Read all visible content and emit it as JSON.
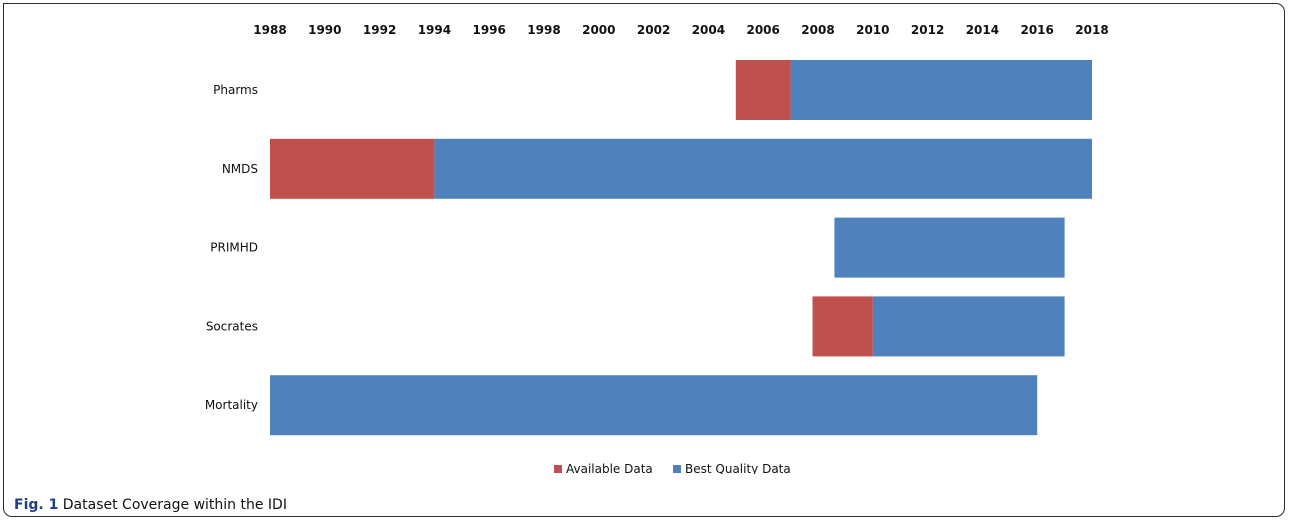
{
  "caption": {
    "label": "Fig. 1",
    "text": "Dataset Coverage within the IDI"
  },
  "chart_data": {
    "type": "bar",
    "orientation": "horizontal",
    "stacked": true,
    "title": "",
    "xlabel": "",
    "ylabel": "",
    "x_axis_position": "top",
    "xlim": [
      1988,
      2018
    ],
    "x_ticks": [
      "1988",
      "1990",
      "1992",
      "1994",
      "1996",
      "1998",
      "2000",
      "2002",
      "2004",
      "2006",
      "2008",
      "2010",
      "2012",
      "2014",
      "2016",
      "2018"
    ],
    "grid": false,
    "legend_position": "bottom-center",
    "categories": [
      "Pharms",
      "NMDS",
      "PRIMHD",
      "Socrates",
      "Mortality"
    ],
    "series": [
      {
        "name": "Available Data",
        "color": "#c0504d",
        "ranges": [
          [
            2005,
            2007
          ],
          [
            1988,
            1994
          ],
          null,
          [
            2007.8,
            2010
          ],
          null
        ]
      },
      {
        "name": "Best Quality Data",
        "color": "#4f81bd",
        "ranges": [
          [
            2007,
            2018
          ],
          [
            1994,
            2018
          ],
          [
            2008.6,
            2017
          ],
          [
            2010,
            2017
          ],
          [
            1988,
            2016
          ]
        ]
      }
    ]
  }
}
